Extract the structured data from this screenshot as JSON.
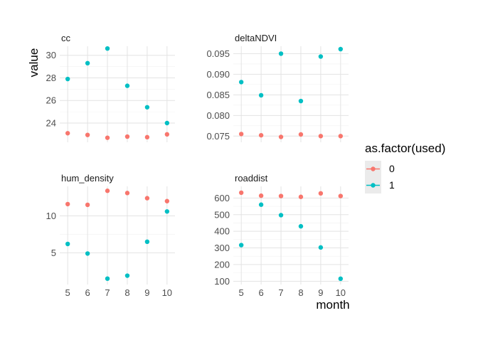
{
  "chart_data": {
    "type": "scatter",
    "layout": "facet-grid 2x2, free y scales",
    "xlabel": "month",
    "ylabel": "value",
    "x": [
      5,
      6,
      7,
      8,
      9,
      10
    ],
    "x_ticks": [
      "5",
      "6",
      "7",
      "8",
      "9",
      "10"
    ],
    "grid": true,
    "legend": {
      "title": "as.factor(used)",
      "placement": "right",
      "entries": [
        {
          "label": "0",
          "color": "#F8766D"
        },
        {
          "label": "1",
          "color": "#00BFC4"
        }
      ]
    },
    "panels": [
      {
        "title": "cc",
        "ylim": [
          22.3,
          30.8
        ],
        "y_ticks": [
          24,
          26,
          28,
          30
        ],
        "y_tick_labels": [
          "24",
          "26",
          "28",
          "30"
        ],
        "series": [
          {
            "name": "0",
            "values": [
              23.1,
              22.95,
              22.7,
              22.8,
              22.75,
              23.0
            ]
          },
          {
            "name": "1",
            "values": [
              27.9,
              29.3,
              30.6,
              27.3,
              25.4,
              24.0
            ]
          }
        ]
      },
      {
        "title": "deltaNDVI",
        "ylim": [
          0.0735,
          0.0968
        ],
        "y_ticks": [
          0.075,
          0.08,
          0.085,
          0.09,
          0.095
        ],
        "y_tick_labels": [
          "0.075",
          "0.080",
          "0.085",
          "0.090",
          "0.095"
        ],
        "series": [
          {
            "name": "0",
            "values": [
              0.0755,
              0.0752,
              0.0748,
              0.0754,
              0.075,
              0.075
            ]
          },
          {
            "name": "1",
            "values": [
              0.0881,
              0.0849,
              0.095,
              0.0835,
              0.0943,
              0.0961
            ]
          }
        ]
      },
      {
        "title": "hum_density",
        "ylim": [
          0.7,
          14.0
        ],
        "y_ticks": [
          5,
          10
        ],
        "y_tick_labels": [
          "5",
          "10"
        ],
        "series": [
          {
            "name": "0",
            "values": [
              11.6,
              11.5,
              13.4,
              13.1,
              12.4,
              12.0
            ]
          },
          {
            "name": "1",
            "values": [
              6.2,
              4.9,
              1.5,
              1.9,
              6.5,
              10.6
            ]
          }
        ]
      },
      {
        "title": "roaddist",
        "ylim": [
          80,
          670
        ],
        "y_ticks": [
          100,
          200,
          300,
          400,
          500,
          600
        ],
        "y_tick_labels": [
          "100",
          "200",
          "300",
          "400",
          "500",
          "600"
        ],
        "series": [
          {
            "name": "0",
            "values": [
              632,
              614,
              612,
              607,
              628,
              612
            ]
          },
          {
            "name": "1",
            "values": [
              317,
              560,
              497,
              430,
              303,
              115
            ]
          }
        ]
      }
    ]
  }
}
